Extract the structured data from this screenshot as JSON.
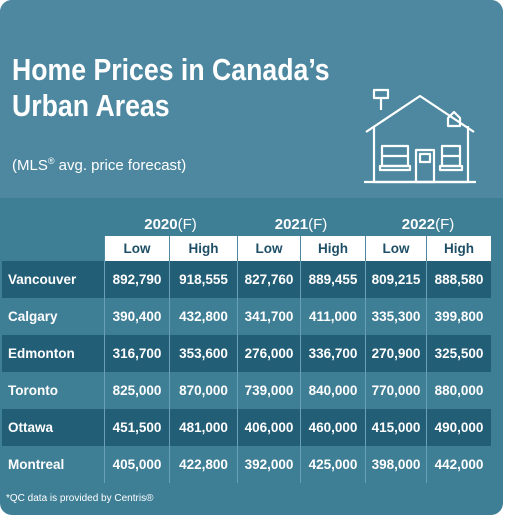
{
  "title_line1": "Home Prices in Canada’s",
  "title_line2": "Urban Areas",
  "subtitle_pre": "(MLS",
  "subtitle_sup": "®",
  "subtitle_post": " avg. price forecast)",
  "footnote": "*QC data is provided by Centris®",
  "colors": {
    "panel": "#4d88a0",
    "row_dark": "#235e77",
    "row_light": "#3f7f96",
    "header_text": "#1f4f66"
  },
  "chart_data": {
    "type": "table",
    "years": [
      {
        "year": "2020",
        "suffix": "(F)"
      },
      {
        "year": "2021",
        "suffix": "(F)"
      },
      {
        "year": "2022",
        "suffix": "(F)"
      }
    ],
    "subheaders": [
      "Low",
      "High",
      "Low",
      "High",
      "Low",
      "High"
    ],
    "rows": [
      {
        "city": "Vancouver",
        "values": [
          "892,790",
          "918,555",
          "827,760",
          "889,455",
          "809,215",
          "888,580"
        ]
      },
      {
        "city": "Calgary",
        "values": [
          "390,400",
          "432,800",
          "341,700",
          "411,000",
          "335,300",
          "399,800"
        ]
      },
      {
        "city": "Edmonton",
        "values": [
          "316,700",
          "353,600",
          "276,000",
          "336,700",
          "270,900",
          "325,500"
        ]
      },
      {
        "city": "Toronto",
        "values": [
          "825,000",
          "870,000",
          "739,000",
          "840,000",
          "770,000",
          "880,000"
        ]
      },
      {
        "city": "Ottawa",
        "values": [
          "451,500",
          "481,000",
          "406,000",
          "460,000",
          "415,000",
          "490,000"
        ]
      },
      {
        "city": "Montreal",
        "values": [
          "405,000",
          "422,800",
          "392,000",
          "425,000",
          "398,000",
          "442,000"
        ]
      }
    ]
  }
}
